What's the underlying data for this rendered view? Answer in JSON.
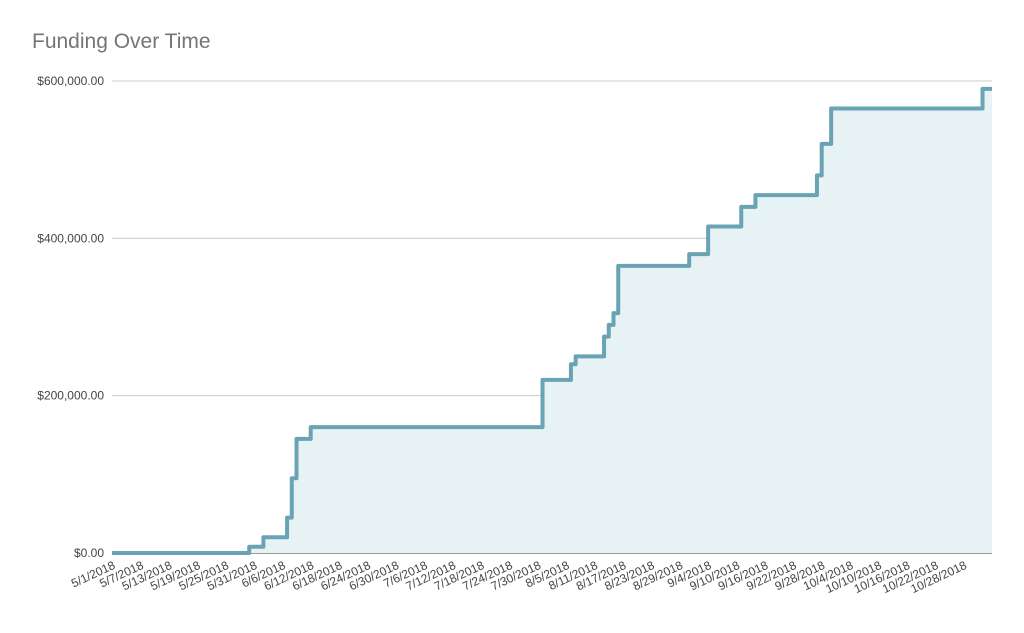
{
  "chart_data": {
    "type": "area",
    "title": "Funding Over Time",
    "xlabel": "",
    "ylabel": "",
    "grid": true,
    "legend": "none",
    "x_start": "5/1/2018",
    "x_end": "11/3/2018",
    "ylim": [
      0,
      600000
    ],
    "y_ticks": [
      {
        "value": 0,
        "label": "$0.00"
      },
      {
        "value": 200000,
        "label": "$200,000.00"
      },
      {
        "value": 400000,
        "label": "$400,000.00"
      },
      {
        "value": 600000,
        "label": "$600,000.00"
      }
    ],
    "x_tick_labels": [
      "5/1/2018",
      "5/7/2018",
      "5/13/2018",
      "5/19/2018",
      "5/25/2018",
      "5/31/2018",
      "6/6/2018",
      "6/12/2018",
      "6/18/2018",
      "6/24/2018",
      "6/30/2018",
      "7/6/2018",
      "7/12/2018",
      "7/18/2018",
      "7/24/2018",
      "7/30/2018",
      "8/5/2018",
      "8/11/2018",
      "8/17/2018",
      "8/23/2018",
      "8/29/2018",
      "9/4/2018",
      "9/10/2018",
      "9/16/2018",
      "9/22/2018",
      "9/28/2018",
      "10/4/2018",
      "10/10/2018",
      "10/16/2018",
      "10/22/2018",
      "10/28/2018"
    ],
    "series": [
      {
        "line_color": "#6aa3b3",
        "fill_color": "#e6f2f3",
        "points": [
          {
            "x": "5/1/2018",
            "y": 0
          },
          {
            "x": "5/30/2018",
            "y": 8000
          },
          {
            "x": "6/2/2018",
            "y": 20000
          },
          {
            "x": "6/7/2018",
            "y": 45000
          },
          {
            "x": "6/8/2018",
            "y": 95000
          },
          {
            "x": "6/9/2018",
            "y": 145000
          },
          {
            "x": "6/12/2018",
            "y": 160000
          },
          {
            "x": "7/31/2018",
            "y": 220000
          },
          {
            "x": "8/6/2018",
            "y": 240000
          },
          {
            "x": "8/7/2018",
            "y": 250000
          },
          {
            "x": "8/13/2018",
            "y": 275000
          },
          {
            "x": "8/14/2018",
            "y": 290000
          },
          {
            "x": "8/15/2018",
            "y": 305000
          },
          {
            "x": "8/16/2018",
            "y": 365000
          },
          {
            "x": "8/31/2018",
            "y": 380000
          },
          {
            "x": "9/4/2018",
            "y": 415000
          },
          {
            "x": "9/11/2018",
            "y": 440000
          },
          {
            "x": "9/14/2018",
            "y": 455000
          },
          {
            "x": "9/27/2018",
            "y": 480000
          },
          {
            "x": "9/28/2018",
            "y": 520000
          },
          {
            "x": "9/30/2018",
            "y": 565000
          },
          {
            "x": "11/1/2018",
            "y": 590000
          },
          {
            "x": "11/3/2018",
            "y": 590000
          }
        ]
      }
    ]
  }
}
